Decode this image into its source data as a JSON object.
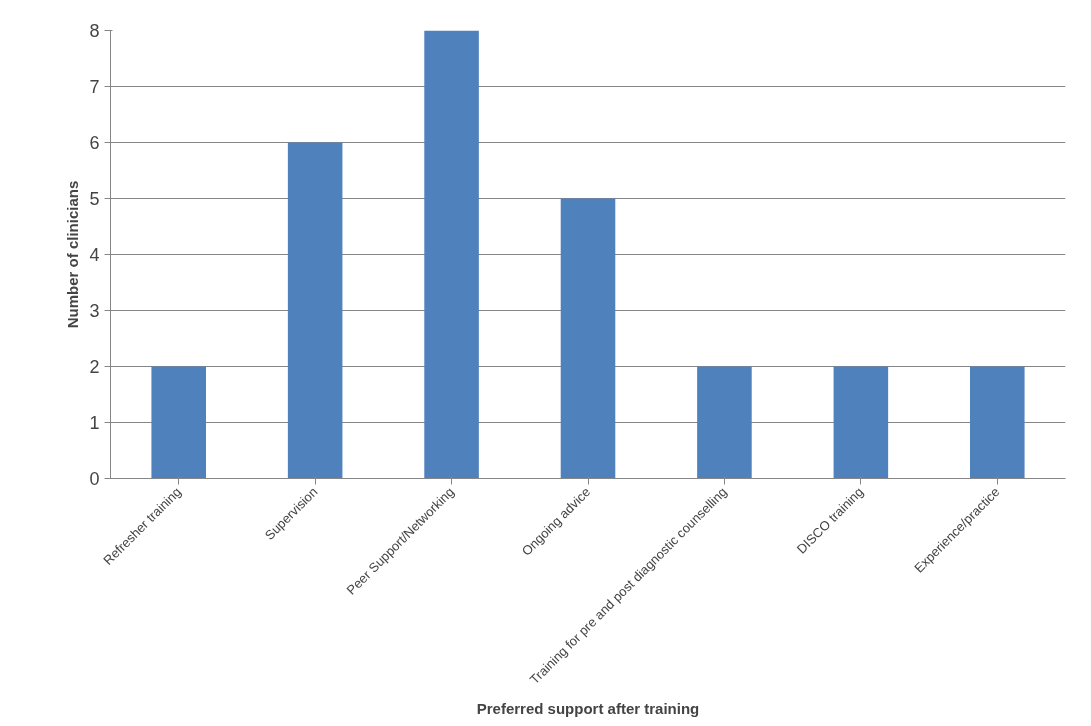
{
  "chart_data": {
    "type": "bar",
    "xlabel": "Preferred support after training",
    "ylabel": "Number of clinicians",
    "categories": [
      "Refresher training",
      "Supervision",
      "Peer Support/Networking",
      "Ongoing advice",
      "Training for pre and post diagnostic counselling",
      "DISCO training",
      "Experience/practice"
    ],
    "values": [
      2,
      6,
      8,
      5,
      2,
      2,
      2
    ],
    "color": "#4f81bd",
    "ylim": [
      0,
      8
    ],
    "yticks": [
      0,
      1,
      2,
      3,
      4,
      5,
      6,
      7,
      8
    ],
    "grid": "y"
  }
}
